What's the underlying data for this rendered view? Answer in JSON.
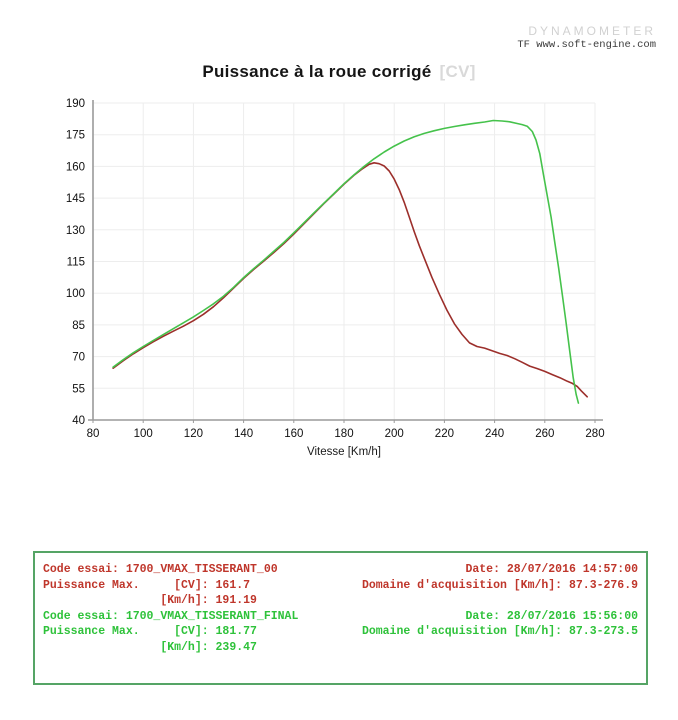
{
  "watermark": {
    "line1": "DYNAMOMETER",
    "line2": "TF www.soft-engine.com"
  },
  "chart_data": {
    "type": "line",
    "title": "Puissance à la roue corrigé",
    "title_suffix": "[CV]",
    "xlabel": "Vitesse [Km/h]",
    "ylabel": "",
    "xlim": [
      80,
      280
    ],
    "ylim": [
      40,
      190
    ],
    "x_ticks": [
      80,
      100,
      120,
      140,
      160,
      180,
      200,
      220,
      240,
      260,
      280
    ],
    "y_ticks": [
      40,
      55,
      70,
      85,
      100,
      115,
      130,
      145,
      160,
      175,
      190
    ],
    "grid": true,
    "legend": "none",
    "axis_color": "#9a9a9a",
    "grid_color": "#ededed",
    "series": [
      {
        "name": "1700_VMAX_TISSERANT_00",
        "color": "#9c2f2b",
        "max_cv": 161.7,
        "max_kmh": 191.19,
        "points": [
          [
            88,
            64.5
          ],
          [
            92,
            68
          ],
          [
            96,
            71.3
          ],
          [
            100,
            74.2
          ],
          [
            104,
            77
          ],
          [
            108,
            79.6
          ],
          [
            112,
            82
          ],
          [
            116,
            84.4
          ],
          [
            120,
            87
          ],
          [
            124,
            90
          ],
          [
            128,
            93.6
          ],
          [
            132,
            97.8
          ],
          [
            136,
            102.4
          ],
          [
            140,
            107
          ],
          [
            144,
            111.2
          ],
          [
            148,
            115.2
          ],
          [
            152,
            119.2
          ],
          [
            156,
            123.4
          ],
          [
            160,
            128
          ],
          [
            164,
            132.8
          ],
          [
            168,
            137.6
          ],
          [
            172,
            142.4
          ],
          [
            176,
            147
          ],
          [
            180,
            151.6
          ],
          [
            184,
            155.8
          ],
          [
            187,
            158.6
          ],
          [
            190,
            161
          ],
          [
            192,
            161.7
          ],
          [
            194,
            161.3
          ],
          [
            196,
            160.2
          ],
          [
            198,
            157.8
          ],
          [
            200,
            154
          ],
          [
            202,
            149
          ],
          [
            204,
            143
          ],
          [
            206,
            136
          ],
          [
            208,
            129
          ],
          [
            210,
            122.5
          ],
          [
            212,
            116.5
          ],
          [
            215,
            107.5
          ],
          [
            218,
            99.5
          ],
          [
            221,
            92
          ],
          [
            224,
            85.5
          ],
          [
            227,
            80.5
          ],
          [
            230,
            76.5
          ],
          [
            233,
            74.8
          ],
          [
            236,
            74
          ],
          [
            239,
            72.8
          ],
          [
            242,
            71.5
          ],
          [
            245,
            70.5
          ],
          [
            248,
            69
          ],
          [
            251,
            67.3
          ],
          [
            254,
            65.5
          ],
          [
            257,
            64.3
          ],
          [
            260,
            63
          ],
          [
            263,
            61.5
          ],
          [
            266,
            60
          ],
          [
            269,
            58.3
          ],
          [
            271,
            57.3
          ],
          [
            273,
            55.8
          ],
          [
            274.5,
            53.8
          ],
          [
            276.9,
            51
          ]
        ]
      },
      {
        "name": "1700_VMAX_TISSERANT_FINAL",
        "color": "#45c24b",
        "max_cv": 181.77,
        "max_kmh": 239.47,
        "points": [
          [
            88,
            65
          ],
          [
            92,
            68.5
          ],
          [
            96,
            71.8
          ],
          [
            100,
            74.8
          ],
          [
            104,
            77.6
          ],
          [
            108,
            80.4
          ],
          [
            112,
            83.2
          ],
          [
            116,
            86
          ],
          [
            120,
            88.8
          ],
          [
            124,
            91.8
          ],
          [
            128,
            95
          ],
          [
            132,
            98.6
          ],
          [
            136,
            102.8
          ],
          [
            140,
            107.4
          ],
          [
            144,
            111.6
          ],
          [
            148,
            115.6
          ],
          [
            152,
            119.8
          ],
          [
            156,
            124
          ],
          [
            160,
            128.6
          ],
          [
            164,
            133.2
          ],
          [
            168,
            138
          ],
          [
            172,
            142.6
          ],
          [
            176,
            147.2
          ],
          [
            180,
            151.8
          ],
          [
            184,
            156
          ],
          [
            188,
            160
          ],
          [
            192,
            163.6
          ],
          [
            196,
            166.8
          ],
          [
            200,
            169.6
          ],
          [
            204,
            172
          ],
          [
            208,
            174
          ],
          [
            212,
            175.6
          ],
          [
            216,
            176.9
          ],
          [
            220,
            178
          ],
          [
            224,
            178.9
          ],
          [
            228,
            179.7
          ],
          [
            232,
            180.4
          ],
          [
            236,
            181
          ],
          [
            239.5,
            181.7
          ],
          [
            243,
            181.5
          ],
          [
            246,
            181.1
          ],
          [
            249,
            180.3
          ],
          [
            251,
            179.8
          ],
          [
            253,
            179
          ],
          [
            255,
            176.5
          ],
          [
            256.5,
            172.5
          ],
          [
            258,
            166
          ],
          [
            259.5,
            156
          ],
          [
            261,
            146
          ],
          [
            262.5,
            136
          ],
          [
            264,
            124
          ],
          [
            265.5,
            112
          ],
          [
            267,
            99
          ],
          [
            268.5,
            86
          ],
          [
            270,
            72
          ],
          [
            271.3,
            60
          ],
          [
            272.5,
            52
          ],
          [
            273.4,
            48
          ]
        ]
      }
    ]
  },
  "info_box": {
    "border_color": "#55a465",
    "runs": [
      {
        "color": "#bf362b",
        "lines": [
          {
            "left": "Code essai: 1700_VMAX_TISSERANT_00",
            "right": "Date: 28/07/2016 14:57:00"
          },
          {
            "left": "Puissance Max.     [CV]: 161.7",
            "right": "Domaine d'acquisition [Km/h]: 87.3-276.9"
          },
          {
            "left": "                 [Km/h]: 191.19",
            "right": ""
          }
        ]
      },
      {
        "color": "#2ec23a",
        "lines": [
          {
            "left": "Code essai: 1700_VMAX_TISSERANT_FINAL",
            "right": "Date: 28/07/2016 15:56:00"
          },
          {
            "left": "Puissance Max.     [CV]: 181.77",
            "right": "Domaine d'acquisition [Km/h]: 87.3-273.5"
          },
          {
            "left": "                 [Km/h]: 239.47",
            "right": ""
          }
        ]
      }
    ]
  }
}
